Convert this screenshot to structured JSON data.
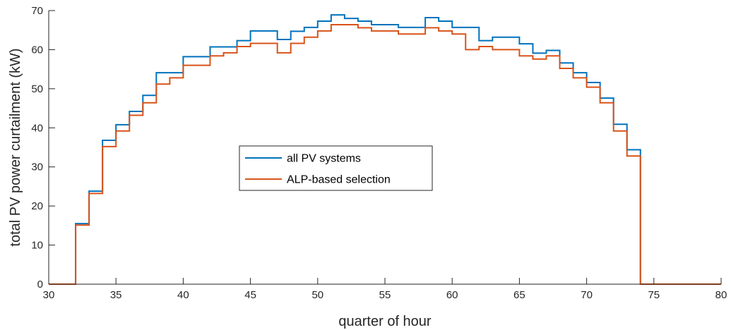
{
  "chart_data": {
    "type": "line",
    "style": "stairs",
    "xlabel": "quarter of hour",
    "ylabel": "total PV power curtailment (kW)",
    "xlim": [
      30,
      80
    ],
    "ylim": [
      0,
      70
    ],
    "xticks": [
      30,
      35,
      40,
      45,
      50,
      55,
      60,
      65,
      70,
      75,
      80
    ],
    "yticks": [
      0,
      10,
      20,
      30,
      40,
      50,
      60,
      70
    ],
    "grid": false,
    "legend_position": "center",
    "x": [
      30,
      31,
      32,
      33,
      34,
      35,
      36,
      37,
      38,
      39,
      40,
      41,
      42,
      43,
      44,
      45,
      46,
      47,
      48,
      49,
      50,
      51,
      52,
      53,
      54,
      55,
      56,
      57,
      58,
      59,
      60,
      61,
      62,
      63,
      64,
      65,
      66,
      67,
      68,
      69,
      70,
      71,
      72,
      73,
      74,
      75,
      76,
      77,
      78,
      79,
      80
    ],
    "series": [
      {
        "name": "all PV systems",
        "color": "#0072BD",
        "values": [
          0,
          0,
          15.5,
          23.8,
          36.8,
          40.8,
          44.2,
          48.3,
          54.1,
          54.1,
          58.2,
          58.2,
          60.7,
          60.7,
          62.3,
          64.8,
          64.8,
          62.6,
          64.7,
          65.7,
          67.3,
          68.9,
          68.0,
          67.3,
          66.4,
          66.4,
          65.7,
          65.7,
          68.2,
          67.3,
          65.7,
          65.7,
          62.3,
          63.2,
          63.2,
          61.5,
          59.1,
          59.8,
          56.6,
          54.1,
          51.6,
          47.6,
          40.9,
          34.4,
          0,
          0,
          0,
          0,
          0,
          0,
          0
        ]
      },
      {
        "name": "ALP-based selection",
        "color": "#D95319",
        "values": [
          0,
          0,
          15.1,
          23.2,
          35.2,
          39.2,
          43.2,
          46.4,
          51.2,
          52.8,
          56.0,
          56.0,
          58.4,
          59.2,
          60.8,
          61.6,
          61.6,
          59.2,
          61.6,
          63.2,
          64.8,
          66.4,
          66.4,
          65.6,
          64.8,
          64.8,
          64.0,
          64.0,
          65.6,
          64.8,
          64.0,
          60.0,
          60.8,
          60.0,
          60.0,
          58.4,
          57.6,
          58.4,
          55.2,
          52.8,
          50.4,
          46.4,
          39.2,
          32.8,
          0,
          0,
          0,
          0,
          0,
          0,
          0
        ]
      }
    ]
  }
}
